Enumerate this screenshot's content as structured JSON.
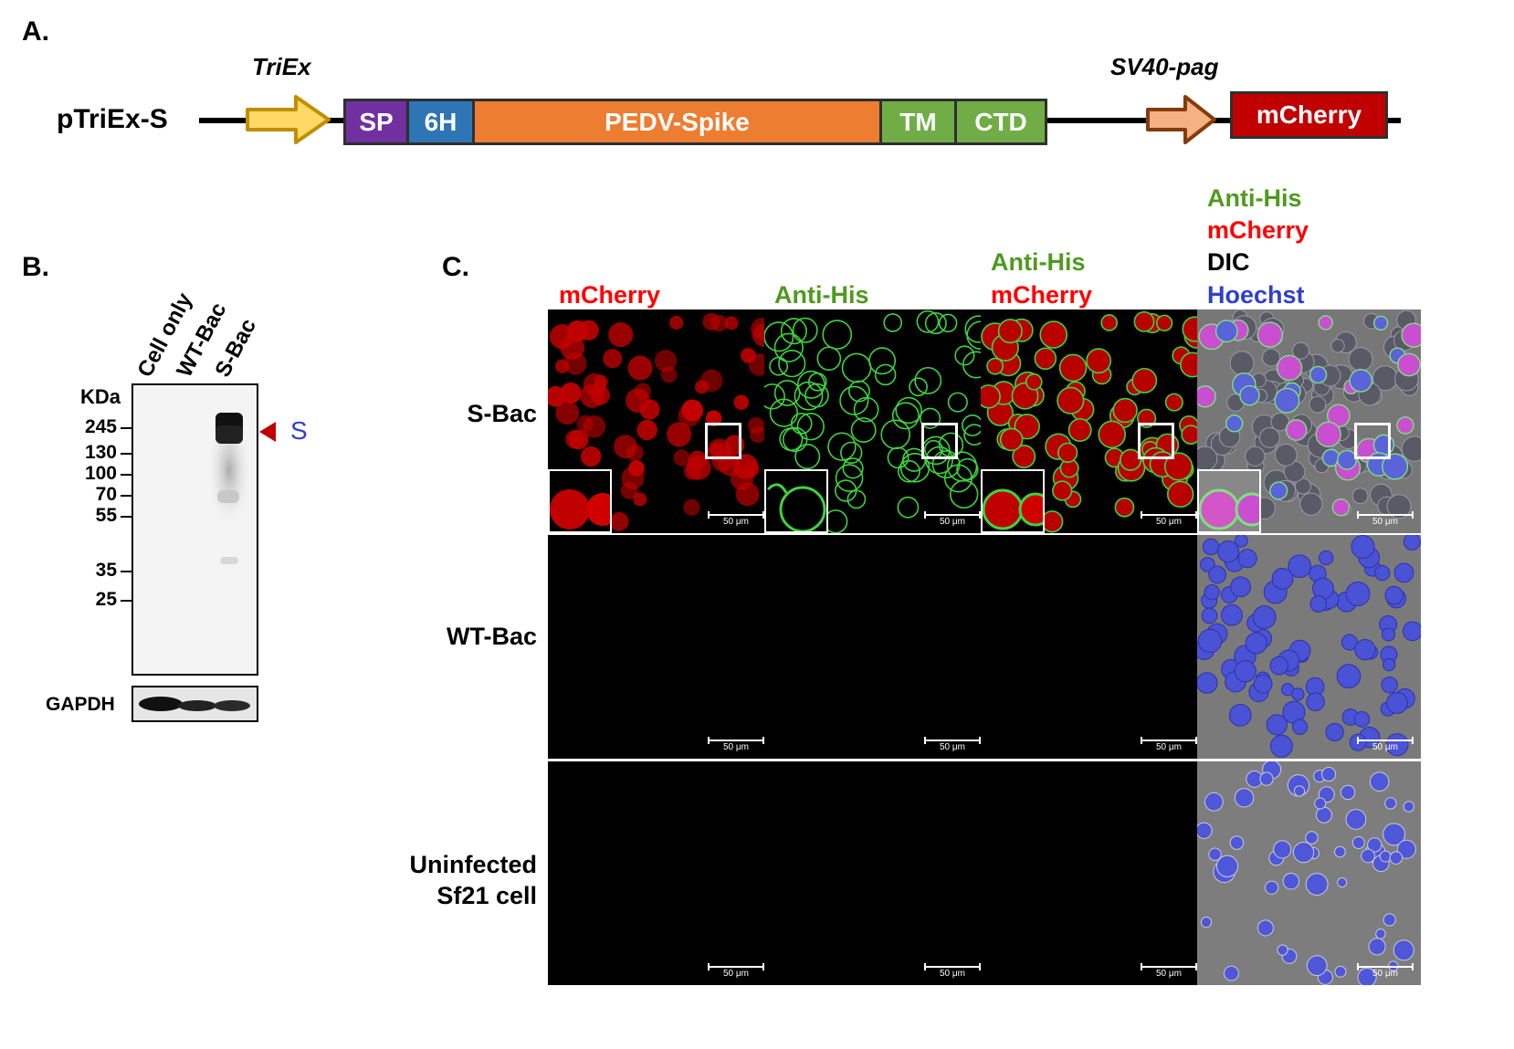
{
  "panels": {
    "a": "A.",
    "b": "B.",
    "c": "C."
  },
  "construct": {
    "name": "pTriEx-S",
    "promoter1": "TriEx",
    "promoter2": "SV40-pag",
    "segments": [
      "SP",
      "6H",
      "PEDV-Spike",
      "TM",
      "CTD"
    ],
    "reporter": "mCherry",
    "colors": {
      "SP": "#7030a0",
      "6H": "#2e75b6",
      "PEDV-Spike": "#ed7d31",
      "TM": "#70ad47",
      "CTD": "#70ad47",
      "mCherry": "#c00000",
      "promoter1": "#ffd966",
      "promoter2": "#f4b183"
    }
  },
  "western": {
    "lanes": [
      "Cell only",
      "WT-Bac",
      "S-Bac"
    ],
    "unit": "KDa",
    "markers": [
      "245",
      "130",
      "100",
      "70",
      "55",
      "35",
      "25"
    ],
    "band_label": "S",
    "loading_control": "GAPDH"
  },
  "imaging": {
    "columns": {
      "c1": {
        "line1": "mCherry"
      },
      "c2": {
        "line1": "Anti-His"
      },
      "c3": {
        "line1": "Anti-His",
        "line2": "mCherry"
      },
      "c4": {
        "line1": "Anti-His",
        "line2": "mCherry",
        "line3": "DIC",
        "line4": "Hoechst"
      }
    },
    "rows": {
      "r1": "S-Bac",
      "r2": "WT-Bac",
      "r3_line1": "Uninfected",
      "r3_line2": "Sf21 cell"
    },
    "scale_bar": "50 μm",
    "colors": {
      "mCherry": "#ff0000",
      "Anti-His": "#4f9a1f",
      "DIC": "#000000",
      "Hoechst": "#2e3fd0"
    }
  }
}
